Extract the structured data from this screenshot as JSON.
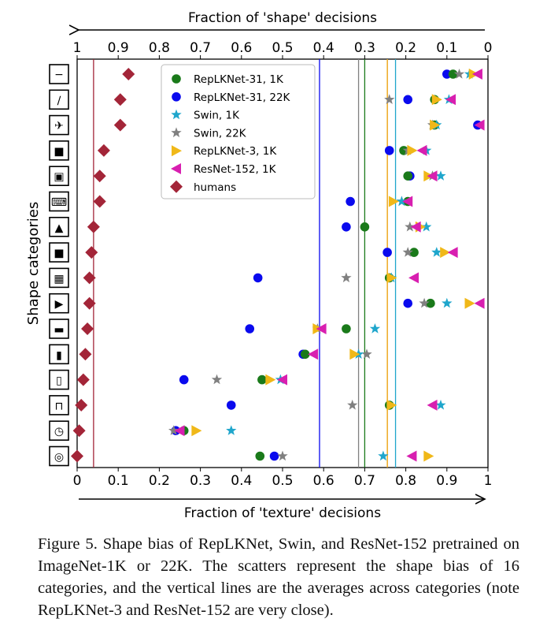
{
  "chart_data": {
    "type": "scatter",
    "xlabel": "Fraction of 'texture' decisions",
    "top_xlabel": "Fraction of 'shape' decisions",
    "ylabel": "Shape categories",
    "xlim": [
      0,
      1
    ],
    "x_ticks": [
      "0",
      "0.1",
      "0.2",
      "0.3",
      "0.4",
      "0.5",
      "0.6",
      "0.7",
      "0.8",
      "0.9",
      "1"
    ],
    "top_ticks": [
      "1",
      "0.9",
      "0.8",
      "0.7",
      "0.6",
      "0.5",
      "0.4",
      "0.3",
      "0.2",
      "0.1",
      "0"
    ],
    "legend_position": "top-center",
    "categories": [
      "knife",
      "bottle-like",
      "airplane",
      "bear",
      "dog",
      "keyboard",
      "cat",
      "elephant",
      "oven",
      "bird",
      "car",
      "truck",
      "bottle",
      "chair",
      "clock",
      "bicycle"
    ],
    "series": [
      {
        "name": "RepLKNet-31, 1K",
        "marker": "circle",
        "color": "#1a7a1a",
        "values": [
          0.915,
          0.87,
          0.87,
          0.795,
          0.805,
          0.805,
          0.7,
          0.82,
          0.76,
          0.86,
          0.655,
          0.555,
          0.45,
          0.76,
          0.26,
          0.445
        ]
      },
      {
        "name": "RepLKNet-31, 22K",
        "marker": "circle",
        "color": "#0a0aee",
        "values": [
          0.9,
          0.805,
          0.975,
          0.76,
          0.81,
          0.665,
          0.655,
          0.755,
          0.44,
          0.805,
          0.42,
          0.55,
          0.26,
          0.375,
          0.24,
          0.48
        ]
      },
      {
        "name": "Swin, 1K",
        "marker": "star",
        "color": "#1fa6cc",
        "values": [
          0.955,
          0.905,
          0.875,
          0.85,
          0.885,
          0.79,
          0.85,
          0.875,
          0.765,
          0.9,
          0.725,
          0.685,
          0.495,
          0.885,
          0.375,
          0.745
        ]
      },
      {
        "name": "Swin, 22K",
        "marker": "star",
        "color": "#808080",
        "values": [
          0.93,
          0.76,
          0.865,
          0.805,
          0.865,
          0.79,
          0.81,
          0.805,
          0.655,
          0.845,
          0.585,
          0.705,
          0.34,
          0.67,
          0.235,
          0.5
        ]
      },
      {
        "name": "RepLKNet-3, 1K",
        "marker": "triangle-right",
        "color": "#f0b818",
        "values": [
          0.965,
          0.875,
          0.87,
          0.815,
          0.855,
          0.77,
          0.835,
          0.895,
          0.765,
          0.955,
          0.585,
          0.675,
          0.47,
          0.765,
          0.29,
          0.855
        ]
      },
      {
        "name": "ResNet-152, 1K",
        "marker": "triangle-left",
        "color": "#d81fb0",
        "values": [
          0.975,
          0.91,
          0.98,
          0.84,
          0.865,
          0.805,
          0.825,
          0.915,
          0.82,
          0.98,
          0.595,
          0.575,
          0.5,
          0.865,
          0.25,
          0.815
        ]
      },
      {
        "name": "humans",
        "marker": "diamond",
        "color": "#a32538",
        "values": [
          0.125,
          0.105,
          0.105,
          0.065,
          0.055,
          0.055,
          0.04,
          0.035,
          0.03,
          0.03,
          0.025,
          0.02,
          0.015,
          0.01,
          0.005,
          0.0
        ]
      }
    ],
    "average_lines": [
      {
        "series": "humans",
        "value": 0.04,
        "color": "#a32538"
      },
      {
        "series": "RepLKNet-31, 22K",
        "value": 0.59,
        "color": "#0a0aee"
      },
      {
        "series": "Swin, 22K",
        "value": 0.685,
        "color": "#808080"
      },
      {
        "series": "RepLKNet-31, 1K",
        "value": 0.7,
        "color": "#1a7a1a"
      },
      {
        "series": "ResNet-152, 1K",
        "value": 0.755,
        "color": "#d81f3a"
      },
      {
        "series": "RepLKNet-3, 1K",
        "value": 0.755,
        "color": "#f0b818"
      },
      {
        "series": "Swin, 1K",
        "value": 0.775,
        "color": "#1fa6cc"
      }
    ]
  },
  "caption": "Figure 5. Shape bias of RepLKNet, Swin, and ResNet-152 pretrained on ImageNet-1K or 22K. The scatters represent the shape bias of 16 categories, and the vertical lines are the averages across categories (note RepLKNet-3 and ResNet-152 are very close).",
  "icons": [
    "knife-icon",
    "bottle-like-icon",
    "airplane-icon",
    "bear-icon",
    "dog-icon",
    "keyboard-icon",
    "cat-icon",
    "elephant-icon",
    "oven-icon",
    "bird-icon",
    "car-icon",
    "truck-icon",
    "bottle-icon",
    "chair-icon",
    "clock-icon",
    "bicycle-icon"
  ]
}
